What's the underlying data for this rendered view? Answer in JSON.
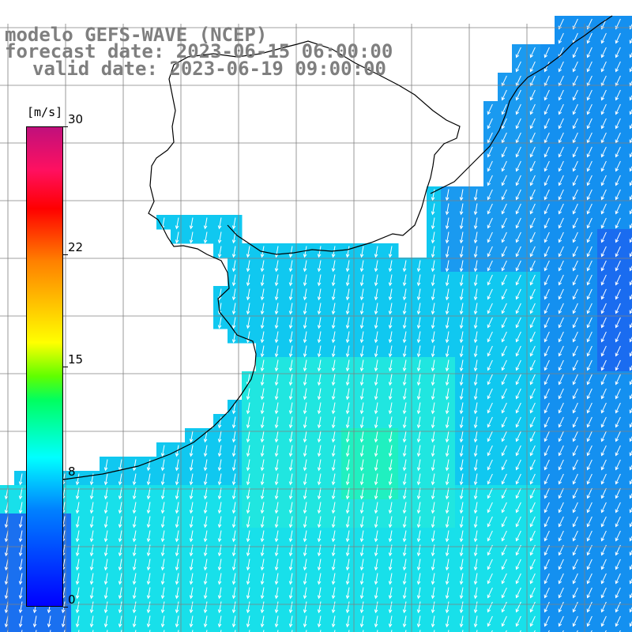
{
  "header": {
    "line1": "modelo GEFS-WAVE (NCEP)",
    "line2": "forecast date: 2023-06-15 06:00:00",
    "line3": "valid date: 2023-06-19 09:00:00"
  },
  "colorbar": {
    "unit": "[m/s]",
    "min": 0,
    "max": 30,
    "ticks": [
      {
        "label": "30",
        "value": 30
      },
      {
        "label": "22",
        "value": 22
      },
      {
        "label": "15",
        "value": 15
      },
      {
        "label": "8",
        "value": 8
      },
      {
        "label": "0",
        "value": 0
      }
    ],
    "colors": [
      "#0000ff",
      "#0080ff",
      "#00ffff",
      "#00ff60",
      "#ffff00",
      "#ff8000",
      "#ff0000",
      "#c0107c"
    ]
  },
  "map": {
    "field": "wind speed with direction arrows",
    "land_color": "#ffffff",
    "grid_color": "#808080",
    "arrow_color": "#ffffff",
    "coast_color": "#000000"
  }
}
